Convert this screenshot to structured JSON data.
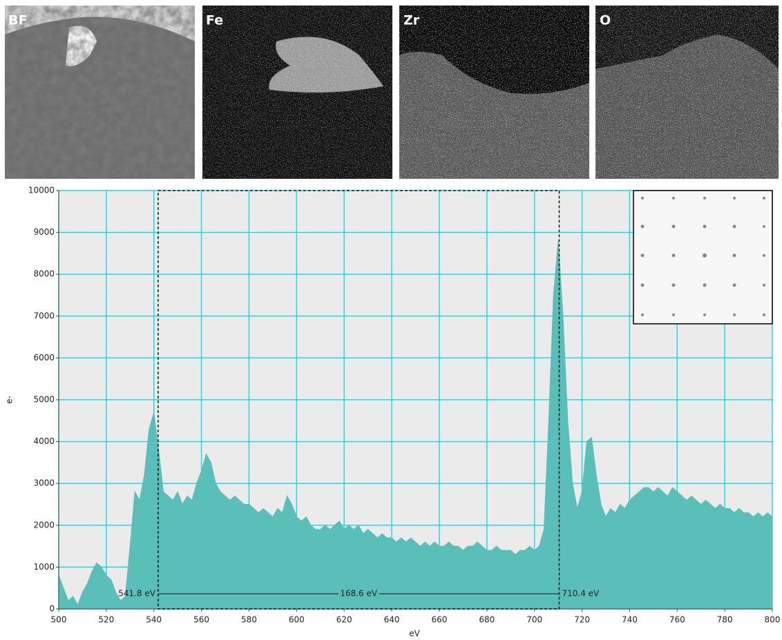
{
  "panels": [
    {
      "label": "BF"
    },
    {
      "label": "Fe"
    },
    {
      "label": "Zr"
    },
    {
      "label": "O"
    }
  ],
  "chart_data": {
    "type": "area",
    "x_label": "eV",
    "y_label": "e-",
    "x": [
      500,
      502,
      504,
      506,
      508,
      510,
      512,
      514,
      516,
      518,
      520,
      522,
      524,
      526,
      528,
      530,
      532,
      534,
      536,
      538,
      540,
      542,
      544,
      546,
      548,
      550,
      552,
      554,
      556,
      558,
      560,
      562,
      564,
      566,
      568,
      570,
      572,
      574,
      576,
      578,
      580,
      582,
      584,
      586,
      588,
      590,
      592,
      594,
      596,
      598,
      600,
      602,
      604,
      606,
      608,
      610,
      612,
      614,
      616,
      618,
      620,
      622,
      624,
      626,
      628,
      630,
      632,
      634,
      636,
      638,
      640,
      642,
      644,
      646,
      648,
      650,
      652,
      654,
      656,
      658,
      660,
      662,
      664,
      666,
      668,
      670,
      672,
      674,
      676,
      678,
      680,
      682,
      684,
      686,
      688,
      690,
      692,
      694,
      696,
      698,
      700,
      702,
      704,
      706,
      708,
      710,
      712,
      714,
      716,
      718,
      720,
      722,
      724,
      726,
      728,
      730,
      732,
      734,
      736,
      738,
      740,
      742,
      744,
      746,
      748,
      750,
      752,
      754,
      756,
      758,
      760,
      762,
      764,
      766,
      768,
      770,
      772,
      774,
      776,
      778,
      780,
      782,
      784,
      786,
      788,
      790,
      792,
      794,
      796,
      798,
      800
    ],
    "series": [
      {
        "color": "#5bbfb9",
        "values": [
          800,
          500,
          200,
          300,
          100,
          400,
          600,
          900,
          1100,
          1000,
          800,
          700,
          400,
          200,
          300,
          1500,
          2800,
          2600,
          3200,
          4300,
          4700,
          3800,
          2800,
          2700,
          2600,
          2800,
          2500,
          2700,
          2600,
          3000,
          3300,
          3700,
          3500,
          3000,
          2800,
          2700,
          2600,
          2700,
          2600,
          2500,
          2500,
          2400,
          2300,
          2400,
          2300,
          2200,
          2400,
          2300,
          2700,
          2500,
          2200,
          2100,
          2200,
          2000,
          1900,
          1900,
          2000,
          1900,
          2000,
          2100,
          1900,
          2000,
          1900,
          2000,
          1800,
          1900,
          1800,
          1700,
          1800,
          1700,
          1700,
          1600,
          1700,
          1600,
          1700,
          1600,
          1500,
          1600,
          1500,
          1600,
          1500,
          1500,
          1600,
          1500,
          1500,
          1400,
          1500,
          1500,
          1600,
          1500,
          1400,
          1400,
          1500,
          1400,
          1400,
          1400,
          1300,
          1400,
          1400,
          1500,
          1400,
          1500,
          1900,
          4500,
          7500,
          8800,
          7000,
          4500,
          3000,
          2400,
          2800,
          4000,
          4100,
          3200,
          2500,
          2200,
          2400,
          2300,
          2500,
          2400,
          2600,
          2700,
          2800,
          2900,
          2900,
          2800,
          2900,
          2800,
          2700,
          2900,
          2800,
          2700,
          2600,
          2700,
          2600,
          2500,
          2600,
          2500,
          2400,
          2500,
          2400,
          2400,
          2300,
          2400,
          2300,
          2300,
          2200,
          2300,
          2200,
          2300,
          2200
        ]
      }
    ],
    "xlim": [
      500,
      800
    ],
    "ylim": [
      0,
      10000
    ],
    "xticks": [
      500,
      520,
      540,
      560,
      580,
      600,
      620,
      640,
      660,
      680,
      700,
      720,
      740,
      760,
      780,
      800
    ],
    "yticks": [
      0,
      1000,
      2000,
      3000,
      4000,
      5000,
      6000,
      7000,
      8000,
      9000,
      10000
    ],
    "grid": true,
    "grid_color": "#22d8e0",
    "region": {
      "start": {
        "value": 541.8,
        "label": "541.8 eV"
      },
      "width": {
        "value": 168.6,
        "label": "168.6 eV"
      },
      "end": {
        "value": 710.4,
        "label": "710.4 eV"
      }
    }
  }
}
